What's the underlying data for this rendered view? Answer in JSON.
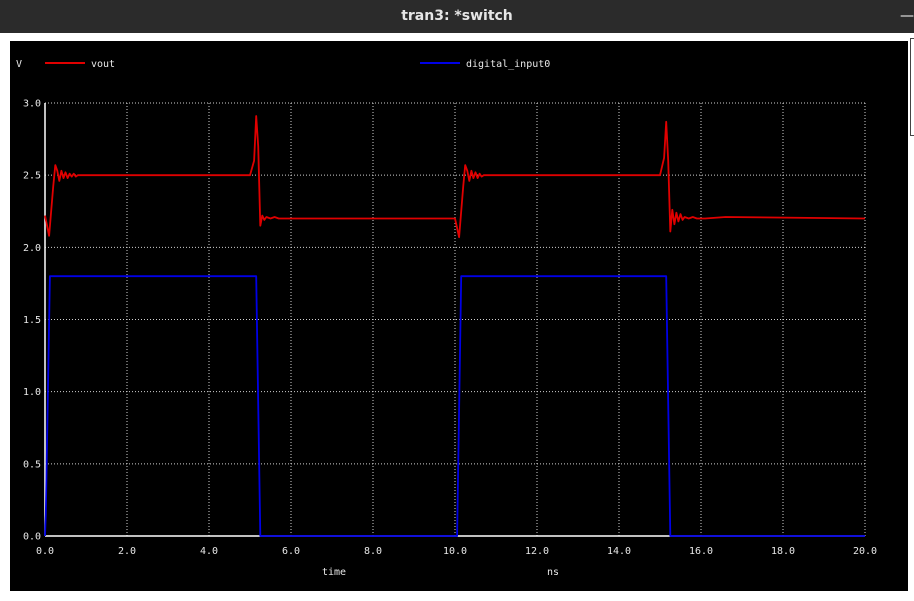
{
  "window": {
    "title": "tran3: *switch"
  },
  "chart_data": {
    "type": "line",
    "ylabel": "V",
    "xlabel": "time",
    "xunit": "ns",
    "xlim": [
      0,
      20
    ],
    "ylim": [
      0,
      3
    ],
    "grid": true,
    "legend_position": "top",
    "x_ticks": [
      "0.0",
      "2.0",
      "4.0",
      "6.0",
      "8.0",
      "10.0",
      "12.0",
      "14.0",
      "16.0",
      "18.0",
      "20.0"
    ],
    "y_ticks": [
      "0.0",
      "0.5",
      "1.0",
      "1.5",
      "2.0",
      "2.5",
      "3.0"
    ],
    "series": [
      {
        "name": "vout",
        "color": "#e00000",
        "x": [
          0,
          0.1,
          0.2,
          0.25,
          0.3,
          0.35,
          0.4,
          0.45,
          0.5,
          0.55,
          0.6,
          0.65,
          0.7,
          0.75,
          0.8,
          0.9,
          1.0,
          1.2,
          5.0,
          5.1,
          5.15,
          5.2,
          5.25,
          5.3,
          5.35,
          5.4,
          5.5,
          5.6,
          5.7,
          5.8,
          6.0,
          10.0,
          10.1,
          10.2,
          10.25,
          10.3,
          10.35,
          10.4,
          10.45,
          10.5,
          10.55,
          10.6,
          10.65,
          10.7,
          10.8,
          10.9,
          11.2,
          15.0,
          15.1,
          15.15,
          15.2,
          15.25,
          15.3,
          15.35,
          15.4,
          15.45,
          15.5,
          15.55,
          15.6,
          15.7,
          15.8,
          15.9,
          16.1,
          16.6,
          20.0
        ],
        "y": [
          2.22,
          2.08,
          2.42,
          2.57,
          2.53,
          2.46,
          2.53,
          2.48,
          2.52,
          2.48,
          2.51,
          2.49,
          2.51,
          2.49,
          2.5,
          2.5,
          2.5,
          2.5,
          2.5,
          2.6,
          2.91,
          2.7,
          2.15,
          2.22,
          2.19,
          2.21,
          2.2,
          2.21,
          2.2,
          2.2,
          2.2,
          2.2,
          2.07,
          2.42,
          2.57,
          2.53,
          2.46,
          2.53,
          2.48,
          2.52,
          2.48,
          2.51,
          2.49,
          2.5,
          2.5,
          2.5,
          2.5,
          2.5,
          2.62,
          2.87,
          2.6,
          2.11,
          2.26,
          2.16,
          2.24,
          2.18,
          2.23,
          2.19,
          2.21,
          2.2,
          2.21,
          2.2,
          2.2,
          2.21,
          2.2
        ]
      },
      {
        "name": "digital_input0",
        "color": "#0000e6",
        "x": [
          0,
          0.02,
          0.12,
          5.15,
          5.25,
          10.05,
          10.15,
          15.15,
          15.25,
          20.0
        ],
        "y": [
          0.0,
          0.15,
          1.8,
          1.8,
          0.0,
          0.0,
          1.8,
          1.8,
          0.0,
          0.0
        ]
      }
    ]
  }
}
